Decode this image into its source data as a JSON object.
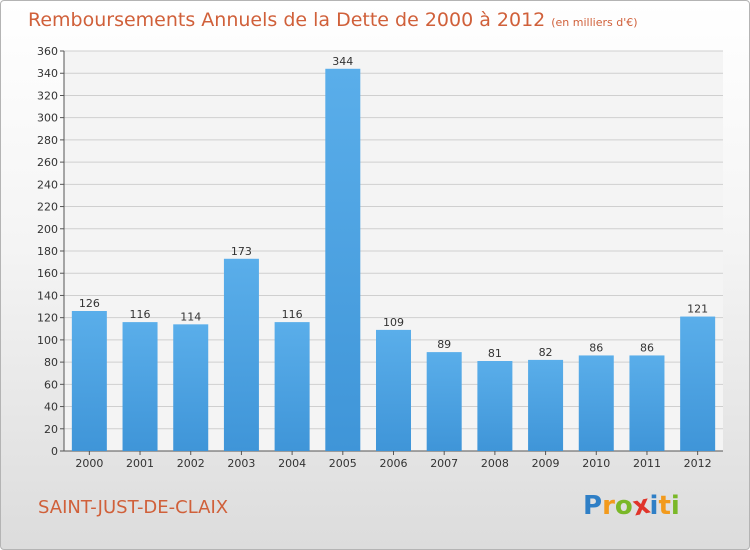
{
  "chart_data": {
    "type": "bar",
    "title": "Remboursements Annuels de la Dette de 2000 à 2012",
    "unit": "(en milliers d'€)",
    "categories": [
      "2000",
      "2001",
      "2002",
      "2003",
      "2004",
      "2005",
      "2006",
      "2007",
      "2008",
      "2009",
      "2010",
      "2011",
      "2012"
    ],
    "values": [
      126,
      116,
      114,
      173,
      116,
      344,
      109,
      89,
      81,
      82,
      86,
      86,
      121
    ],
    "ylim": [
      0,
      360
    ],
    "ytick_step": 20,
    "grid": true,
    "xlabel": "",
    "ylabel": "",
    "bar_color": "#3f95d8"
  },
  "footer": {
    "commune": "SAINT-JUST-DE-CLAIX",
    "logo_letters": [
      "P",
      "r",
      "o",
      "x",
      "i",
      "t",
      "i"
    ],
    "logo_colors": [
      "#2f7fc6",
      "#f29a1c",
      "#7ab828",
      "#e0342a",
      "#2f7fc6",
      "#f29a1c",
      "#7ab828"
    ]
  }
}
